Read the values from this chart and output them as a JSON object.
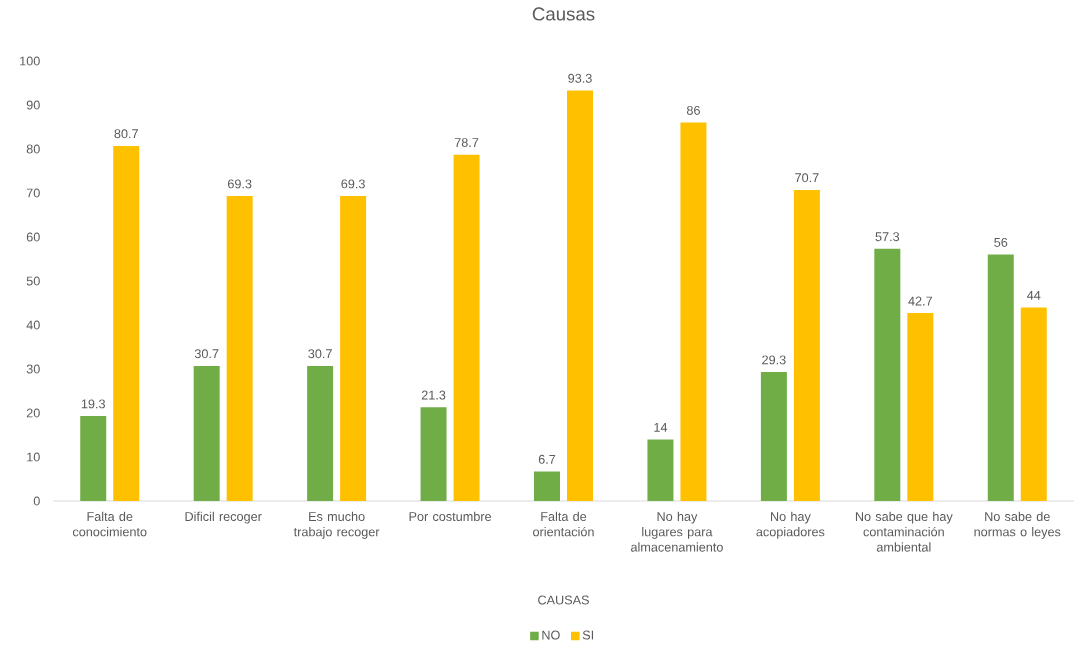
{
  "chart_data": {
    "type": "bar",
    "title": "Causas",
    "xlabel": "CAUSAS",
    "categories": [
      "Falta de conocimiento",
      "Dificil recoger",
      "Es mucho trabajo recoger",
      "Por costumbre",
      "Falta de orientación",
      "No hay lugares para almacenamiento",
      "No hay acopiadores",
      "No sabe que hay contaminación ambiental",
      "No sabe de normas o leyes"
    ],
    "series": [
      {
        "name": "NO",
        "color": "#70ad47",
        "values": [
          19.3,
          30.7,
          30.7,
          21.3,
          6.7,
          14,
          29.3,
          57.3,
          56
        ]
      },
      {
        "name": "SI",
        "color": "#ffc000",
        "values": [
          80.7,
          69.3,
          69.3,
          78.7,
          93.3,
          86,
          70.7,
          42.7,
          44
        ]
      }
    ],
    "ylim": [
      0,
      100
    ],
    "yticks": [
      0,
      10,
      20,
      30,
      40,
      50,
      60,
      70,
      80,
      90,
      100
    ],
    "data_labels": true,
    "legend": "bottom"
  }
}
